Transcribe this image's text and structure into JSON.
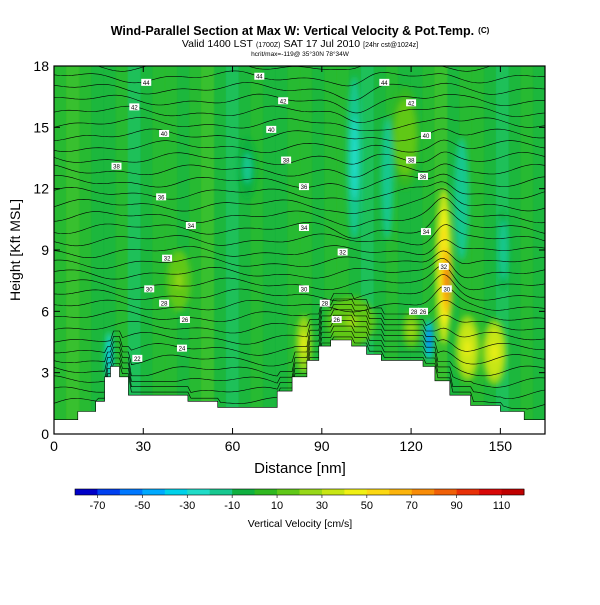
{
  "header": {
    "title": "Wind-Parallel Section at Max W: Vertical Velocity & Pot.Temp.",
    "title_mark": "(C)",
    "valid_line": "Valid 1400 LST",
    "valid_utc": "(1700Z)",
    "valid_date": "SAT 17 Jul 2010",
    "valid_model": "[24hr cst@1024z]",
    "subline": "hcrit/max=-119@ 35°30N 78°34W"
  },
  "chart_data": {
    "type": "heatmap",
    "xlabel": "Distance [nm]",
    "ylabel": "Height [Kft MSL]",
    "xlim": [
      0,
      165
    ],
    "ylim": [
      0,
      18
    ],
    "x_ticks": [
      "0",
      "30",
      "60",
      "90",
      "120",
      "150"
    ],
    "x_tick_values": [
      0,
      30,
      60,
      90,
      120,
      150
    ],
    "y_ticks": [
      "0",
      "3",
      "6",
      "9",
      "12",
      "15",
      "18"
    ],
    "y_tick_values": [
      0,
      3,
      6,
      9,
      12,
      15,
      18
    ],
    "colorbar": {
      "label": "Vertical Velocity [cm/s]",
      "range": [
        -80,
        120
      ],
      "ticks": [
        "-70",
        "-50",
        "-30",
        "-10",
        "10",
        "30",
        "50",
        "70",
        "90",
        "110"
      ],
      "tick_values": [
        -70,
        -50,
        -30,
        -10,
        10,
        30,
        50,
        70,
        90,
        110
      ],
      "colors": [
        "#0000c8",
        "#0040f0",
        "#0078ff",
        "#00aaff",
        "#00d2ea",
        "#20dcc8",
        "#18c890",
        "#10b040",
        "#30b820",
        "#60c818",
        "#98d818",
        "#c8e614",
        "#f0f014",
        "#fcd812",
        "#fcb40c",
        "#f88c08",
        "#f06008",
        "#e83008",
        "#d80808",
        "#c00000"
      ]
    },
    "terrain": [
      [
        0,
        0.7
      ],
      [
        8,
        0.7
      ],
      [
        8,
        1.1
      ],
      [
        14,
        1.1
      ],
      [
        14,
        1.6
      ],
      [
        17,
        1.6
      ],
      [
        17,
        2.8
      ],
      [
        19,
        2.8
      ],
      [
        19,
        3.3
      ],
      [
        22,
        3.3
      ],
      [
        22,
        2.8
      ],
      [
        25,
        2.8
      ],
      [
        25,
        1.9
      ],
      [
        45,
        1.9
      ],
      [
        45,
        1.6
      ],
      [
        55,
        1.6
      ],
      [
        55,
        1.3
      ],
      [
        75,
        1.3
      ],
      [
        75,
        2.1
      ],
      [
        80,
        2.1
      ],
      [
        80,
        2.8
      ],
      [
        85,
        2.8
      ],
      [
        85,
        3.6
      ],
      [
        89,
        3.6
      ],
      [
        89,
        4.3
      ],
      [
        93,
        4.3
      ],
      [
        93,
        4.6
      ],
      [
        100,
        4.6
      ],
      [
        100,
        4.3
      ],
      [
        105,
        4.3
      ],
      [
        105,
        3.9
      ],
      [
        110,
        3.9
      ],
      [
        110,
        3.6
      ],
      [
        124,
        3.6
      ],
      [
        124,
        3.3
      ],
      [
        128,
        3.3
      ],
      [
        128,
        2.6
      ],
      [
        133,
        2.6
      ],
      [
        133,
        1.9
      ],
      [
        140,
        1.9
      ],
      [
        140,
        1.4
      ],
      [
        150,
        1.4
      ],
      [
        150,
        1.1
      ],
      [
        158,
        1.1
      ],
      [
        158,
        0.7
      ],
      [
        165,
        0.7
      ]
    ],
    "updrafts": [
      {
        "x": 131,
        "z": 8.2,
        "rx": 2.6,
        "rz": 3.8,
        "w": 60
      },
      {
        "x": 132,
        "z": 7.5,
        "rx": 1.8,
        "rz": 2.2,
        "w": 90
      },
      {
        "x": 139,
        "z": 4.2,
        "rx": 4.0,
        "rz": 1.6,
        "w": 45
      },
      {
        "x": 148,
        "z": 4.0,
        "rx": 4.0,
        "rz": 1.6,
        "w": 45
      },
      {
        "x": 84,
        "z": 4.4,
        "rx": 2.6,
        "rz": 1.4,
        "w": 40
      },
      {
        "x": 100,
        "z": 5.5,
        "rx": 8.0,
        "rz": 1.2,
        "w": 22
      },
      {
        "x": 120,
        "z": 5.1,
        "rx": 3.0,
        "rz": 0.9,
        "w": 28
      },
      {
        "x": 42,
        "z": 7.5,
        "rx": 4.0,
        "rz": 1.5,
        "w": 20
      },
      {
        "x": 118,
        "z": 14.5,
        "rx": 5.0,
        "rz": 2.5,
        "w": 18
      }
    ],
    "downdrafts": [
      {
        "x": 126,
        "z": 4.6,
        "rx": 1.4,
        "rz": 1.0,
        "w": -60
      },
      {
        "x": 18.5,
        "z": 3.8,
        "rx": 1.2,
        "rz": 1.2,
        "w": -45
      },
      {
        "x": 101,
        "z": 13.5,
        "rx": 2.5,
        "rz": 4.0,
        "w": -25
      },
      {
        "x": 112,
        "z": 12.5,
        "rx": 2.0,
        "rz": 3.0,
        "w": -20
      },
      {
        "x": 137,
        "z": 11.5,
        "rx": 2.5,
        "rz": 3.0,
        "w": -20
      },
      {
        "x": 65,
        "z": 13.0,
        "rx": 3.0,
        "rz": 1.5,
        "w": -12
      },
      {
        "x": 151,
        "z": 9.0,
        "rx": 2.0,
        "rz": 2.0,
        "w": -15
      }
    ],
    "isentrope_labels": [
      {
        "x": 31,
        "z": 17.2,
        "text": "44"
      },
      {
        "x": 69,
        "z": 17.5,
        "text": "44"
      },
      {
        "x": 111,
        "z": 17.2,
        "text": "44"
      },
      {
        "x": 27,
        "z": 16.0,
        "text": "42"
      },
      {
        "x": 77,
        "z": 16.3,
        "text": "42"
      },
      {
        "x": 120,
        "z": 16.2,
        "text": "42"
      },
      {
        "x": 37,
        "z": 14.7,
        "text": "40"
      },
      {
        "x": 73,
        "z": 14.9,
        "text": "40"
      },
      {
        "x": 125,
        "z": 14.6,
        "text": "40"
      },
      {
        "x": 21,
        "z": 13.1,
        "text": "38"
      },
      {
        "x": 78,
        "z": 13.4,
        "text": "38"
      },
      {
        "x": 120,
        "z": 13.4,
        "text": "38"
      },
      {
        "x": 84,
        "z": 12.1,
        "text": "36"
      },
      {
        "x": 124,
        "z": 12.6,
        "text": "36"
      },
      {
        "x": 36,
        "z": 11.6,
        "text": "36"
      },
      {
        "x": 46,
        "z": 10.2,
        "text": "34"
      },
      {
        "x": 84,
        "z": 10.1,
        "text": "34"
      },
      {
        "x": 125,
        "z": 9.9,
        "text": "34"
      },
      {
        "x": 38,
        "z": 8.6,
        "text": "32"
      },
      {
        "x": 97,
        "z": 8.9,
        "text": "32"
      },
      {
        "x": 131,
        "z": 8.2,
        "text": "32"
      },
      {
        "x": 32,
        "z": 7.1,
        "text": "30"
      },
      {
        "x": 84,
        "z": 7.1,
        "text": "30"
      },
      {
        "x": 132,
        "z": 7.1,
        "text": "30"
      },
      {
        "x": 37,
        "z": 6.4,
        "text": "28"
      },
      {
        "x": 91,
        "z": 6.4,
        "text": "28"
      },
      {
        "x": 121,
        "z": 6.0,
        "text": "28"
      },
      {
        "x": 44,
        "z": 5.6,
        "text": "26"
      },
      {
        "x": 95,
        "z": 5.6,
        "text": "26"
      },
      {
        "x": 124,
        "z": 6.0,
        "text": "26"
      },
      {
        "x": 43,
        "z": 4.2,
        "text": "24"
      },
      {
        "x": 28,
        "z": 3.7,
        "text": "22"
      }
    ]
  }
}
